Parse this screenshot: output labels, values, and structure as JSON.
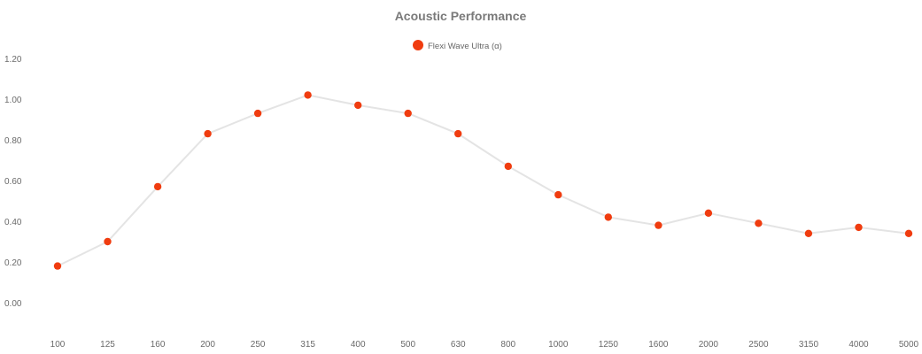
{
  "chart_data": {
    "type": "line",
    "title": "Acoustic Performance",
    "xlabel": "",
    "ylabel": "",
    "categories": [
      "100",
      "125",
      "160",
      "200",
      "250",
      "315",
      "400",
      "500",
      "630",
      "800",
      "1000",
      "1250",
      "1600",
      "2000",
      "2500",
      "3150",
      "4000",
      "5000"
    ],
    "series": [
      {
        "name": "Flexi Wave Ultra (α)",
        "values": [
          0.18,
          0.3,
          0.57,
          0.83,
          0.93,
          1.02,
          0.97,
          0.93,
          0.83,
          0.67,
          0.53,
          0.42,
          0.38,
          0.44,
          0.39,
          0.34,
          0.37,
          0.34
        ]
      }
    ],
    "y_ticks": [
      "0.00",
      "0.20",
      "0.40",
      "0.60",
      "0.80",
      "1.00",
      "1.20"
    ],
    "ylim": [
      0,
      1.2
    ],
    "grid": false,
    "legend_position": "top-center"
  },
  "colors": {
    "marker": "#f03c0f",
    "line": "#e4e4e4",
    "title": "#7a7a7a",
    "tick_text": "#6a6a6a"
  }
}
